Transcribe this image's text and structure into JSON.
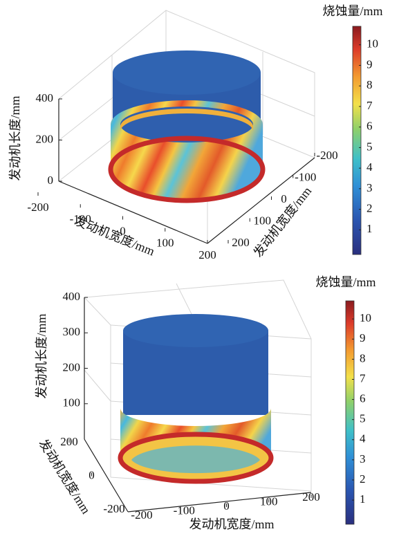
{
  "chart_data": [
    {
      "type": "surface3d",
      "zlabel": "发动机长度/mm",
      "xlabel": "发动机宽度/mm",
      "ylabel": "发动机宽度/mm",
      "colorbar_label": "烧蚀量/mm",
      "xlim": [
        -200,
        200
      ],
      "xticks": [
        -200,
        -100,
        0,
        100,
        200
      ],
      "ylim": [
        -200,
        200
      ],
      "yticks": [
        -200,
        -100,
        0,
        100,
        200
      ],
      "zlim": [
        0,
        400
      ],
      "zticks": [
        0,
        200,
        400
      ],
      "clim": [
        -0.2,
        10.9
      ],
      "cticks": [
        1,
        2,
        3,
        4,
        5,
        6,
        7,
        8,
        9,
        10
      ]
    },
    {
      "type": "surface3d",
      "zlabel": "发动机长度/mm",
      "xlabel": "发动机宽度/mm",
      "ylabel": "发动机宽度/mm",
      "colorbar_label": "烧蚀量/mm",
      "xlim": [
        -200,
        200
      ],
      "xticks": [
        -200,
        -100,
        0,
        100,
        200
      ],
      "ylim": [
        -200,
        200
      ],
      "yticks": [
        -200,
        0,
        200
      ],
      "zlim": [
        0,
        400
      ],
      "zticks": [
        100,
        200,
        300,
        400
      ],
      "clim": [
        -0.2,
        10.9
      ],
      "cticks": [
        1,
        2,
        3,
        4,
        5,
        6,
        7,
        8,
        9,
        10
      ]
    }
  ]
}
